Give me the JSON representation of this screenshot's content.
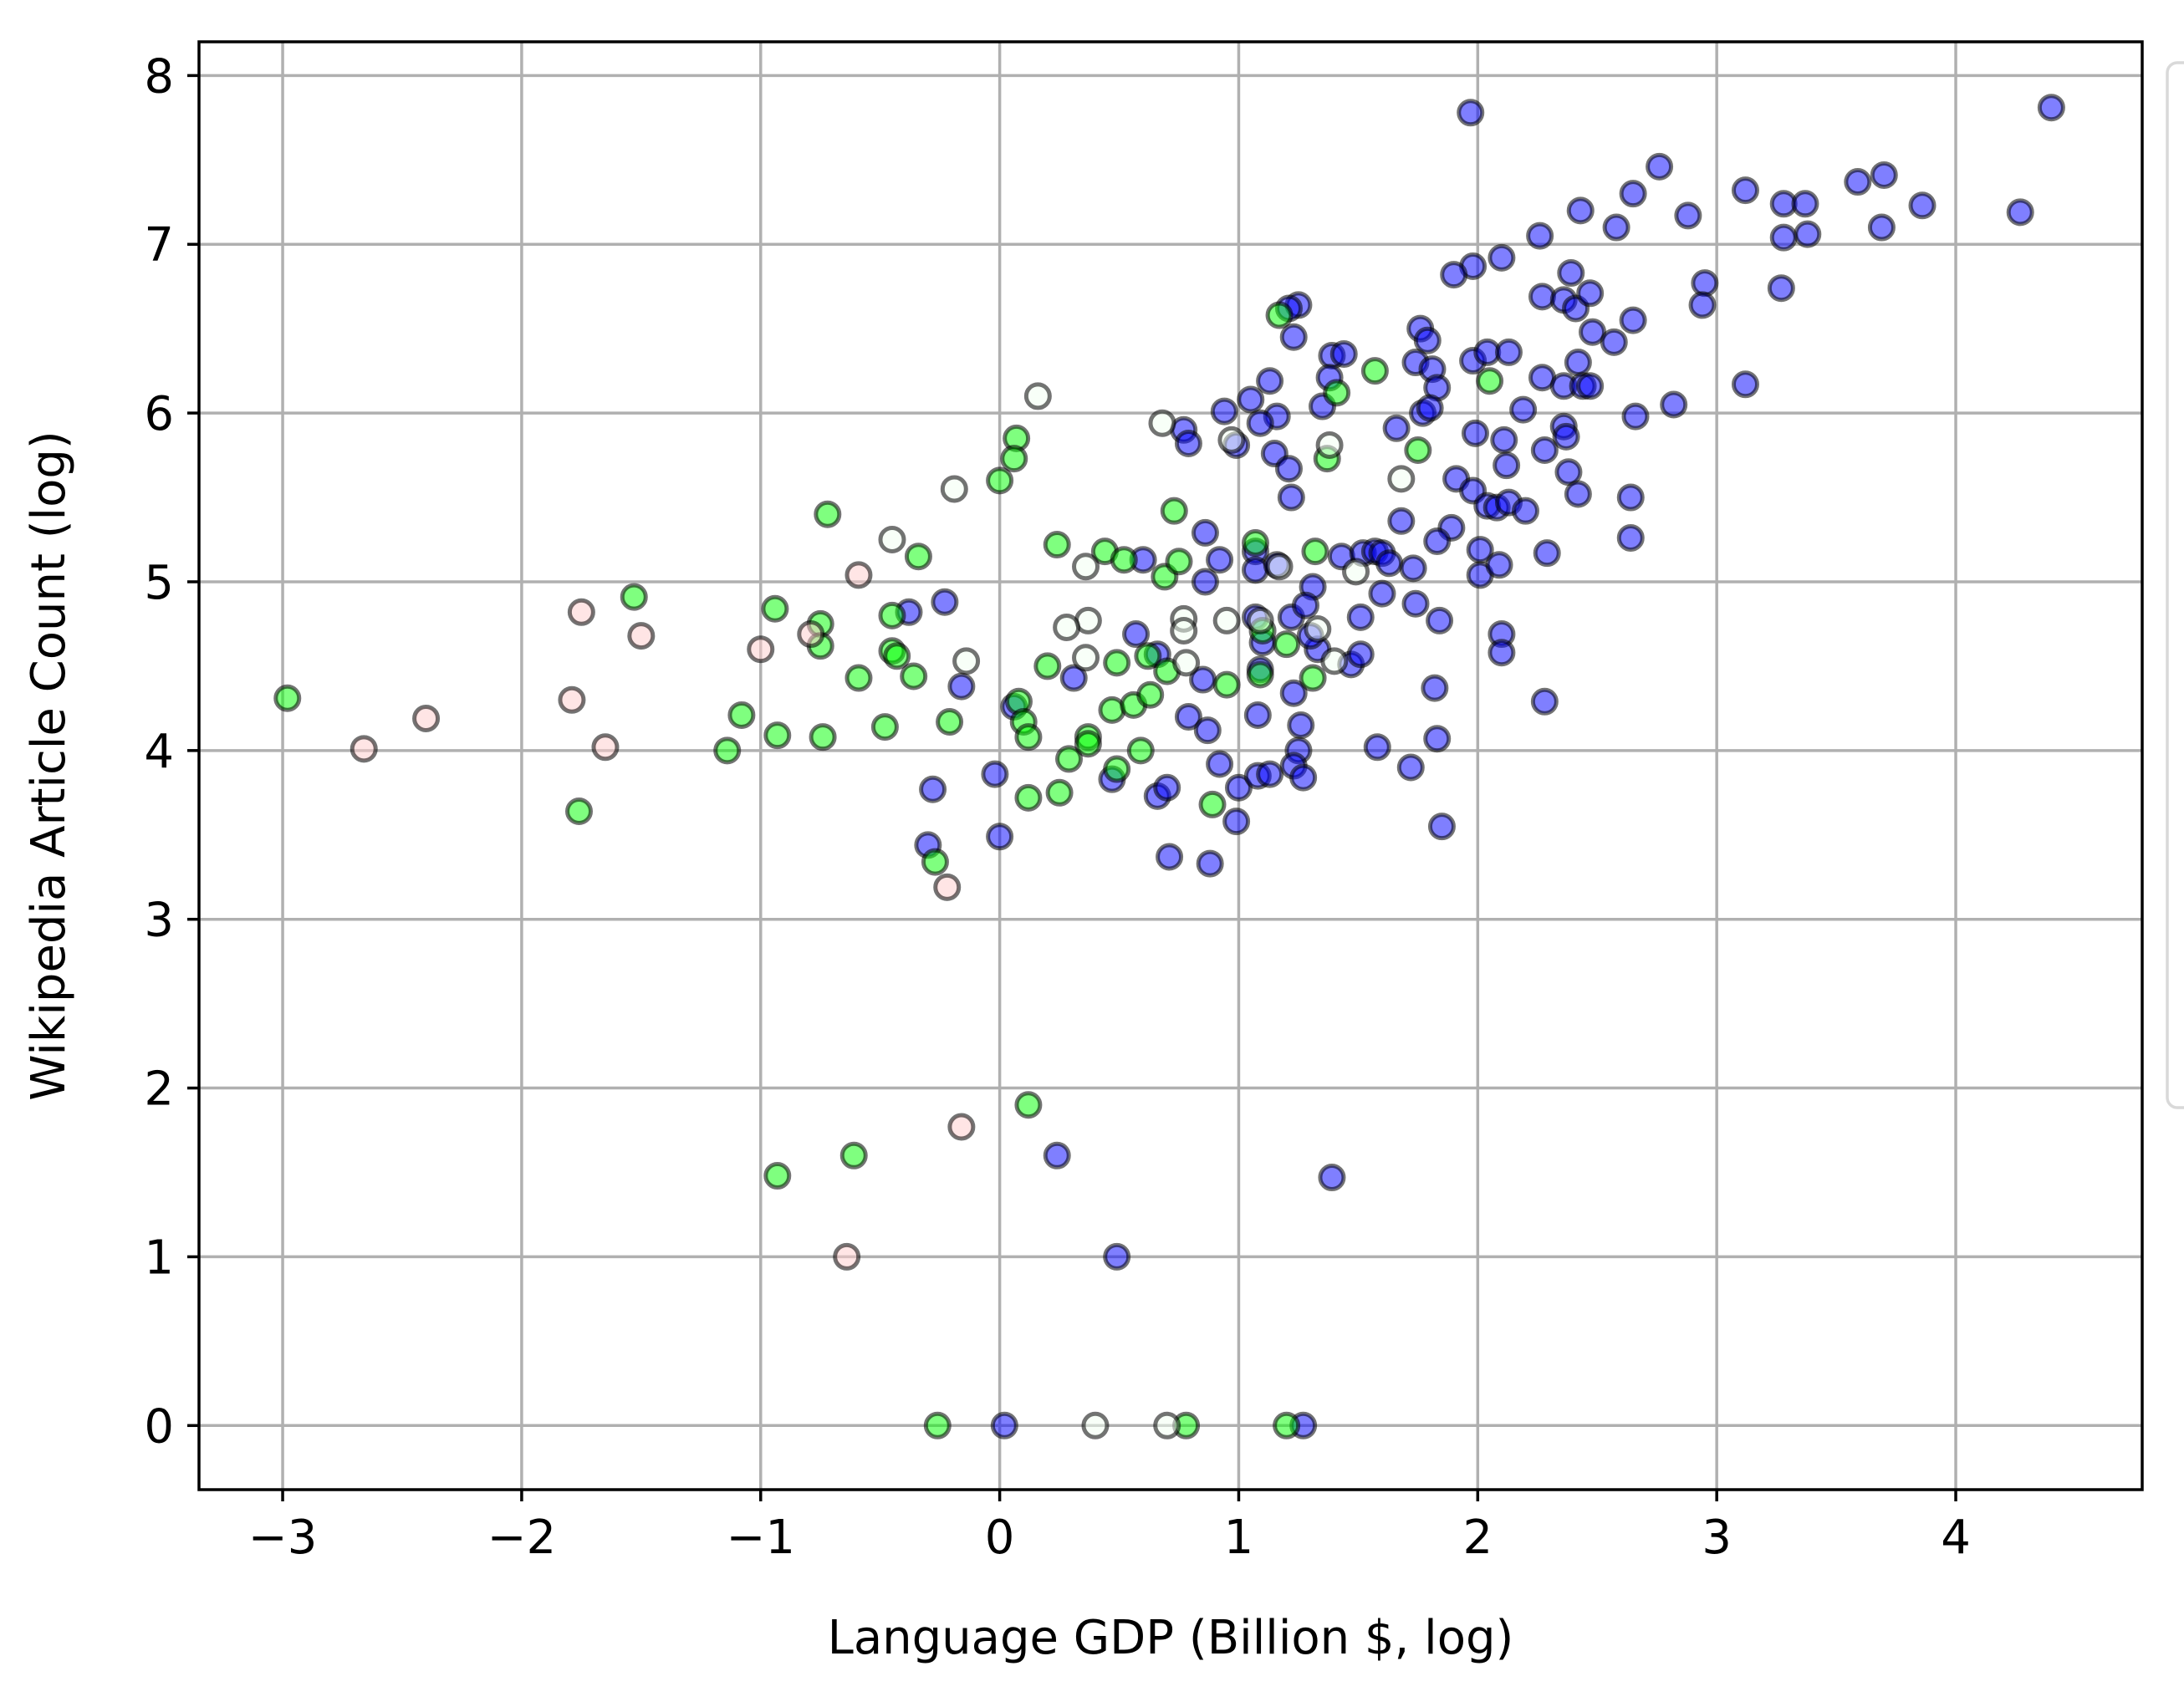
{
  "colors": {
    "series_a": "#0000ff",
    "series_b": "#00ff00",
    "series_c": "#f2fff2",
    "series_d": "#ffcccc",
    "marker_edge": "#000000",
    "grid": "#b0b0b0"
  },
  "chart_data": {
    "type": "scatter",
    "xlabel": "Language GDP (Billion $, log)",
    "ylabel": "Wikipedia Article Count (log)",
    "xlim": [
      -3.35,
      4.78
    ],
    "ylim": [
      -0.38,
      8.2
    ],
    "xticks": [
      -3,
      -2,
      -1,
      0,
      1,
      2,
      3,
      4
    ],
    "xtick_labels": [
      "−3",
      "−2",
      "−1",
      "0",
      "1",
      "2",
      "3",
      "4"
    ],
    "yticks": [
      0,
      1,
      2,
      3,
      4,
      5,
      6,
      7,
      8
    ],
    "ytick_labels": [
      "0",
      "1",
      "2",
      "3",
      "4",
      "5",
      "6",
      "7",
      "8"
    ],
    "grid": true,
    "legend": "right (entries cut off)",
    "series": [
      {
        "color": "#0000ff",
        "points": [
          [
            1.97,
            7.78
          ],
          [
            4.4,
            7.81
          ],
          [
            2.76,
            7.46
          ],
          [
            2.65,
            7.3
          ],
          [
            2.88,
            7.17
          ],
          [
            2.43,
            7.2
          ],
          [
            2.58,
            7.1
          ],
          [
            2.26,
            7.05
          ],
          [
            3.12,
            7.32
          ],
          [
            3.28,
            7.24
          ],
          [
            3.37,
            7.24
          ],
          [
            3.59,
            7.37
          ],
          [
            3.7,
            7.41
          ],
          [
            3.86,
            7.23
          ],
          [
            4.27,
            7.19
          ],
          [
            3.69,
            7.1
          ],
          [
            3.38,
            7.06
          ],
          [
            3.28,
            7.04
          ],
          [
            1.98,
            6.87
          ],
          [
            1.9,
            6.82
          ],
          [
            2.1,
            6.92
          ],
          [
            2.39,
            6.83
          ],
          [
            2.27,
            6.69
          ],
          [
            2.36,
            6.67
          ],
          [
            2.41,
            6.62
          ],
          [
            2.47,
            6.71
          ],
          [
            2.95,
            6.77
          ],
          [
            2.94,
            6.64
          ],
          [
            3.27,
            6.74
          ],
          [
            2.65,
            6.55
          ],
          [
            2.48,
            6.48
          ],
          [
            2.57,
            6.42
          ],
          [
            2.42,
            6.3
          ],
          [
            2.27,
            6.21
          ],
          [
            2.36,
            6.16
          ],
          [
            2.44,
            6.16
          ],
          [
            2.47,
            6.16
          ],
          [
            1.25,
            6.64
          ],
          [
            1.21,
            6.62
          ],
          [
            1.23,
            6.45
          ],
          [
            1.39,
            6.34
          ],
          [
            1.44,
            6.35
          ],
          [
            1.76,
            6.5
          ],
          [
            1.79,
            6.43
          ],
          [
            1.74,
            6.3
          ],
          [
            1.81,
            6.26
          ],
          [
            1.83,
            6.15
          ],
          [
            1.98,
            6.31
          ],
          [
            2.04,
            6.36
          ],
          [
            2.13,
            6.36
          ],
          [
            1.13,
            6.19
          ],
          [
            1.38,
            6.21
          ],
          [
            1.35,
            6.04
          ],
          [
            1.16,
            5.98
          ],
          [
            1.09,
            5.94
          ],
          [
            1.05,
            6.08
          ],
          [
            0.94,
            6.01
          ],
          [
            0.99,
            5.81
          ],
          [
            0.77,
            5.9
          ],
          [
            0.79,
            5.82
          ],
          [
            1.15,
            5.76
          ],
          [
            1.21,
            5.67
          ],
          [
            1.22,
            5.5
          ],
          [
            1.66,
            5.91
          ],
          [
            1.77,
            6.0
          ],
          [
            1.8,
            6.03
          ],
          [
            1.99,
            5.88
          ],
          [
            2.11,
            5.84
          ],
          [
            2.12,
            5.69
          ],
          [
            2.19,
            6.02
          ],
          [
            2.28,
            5.78
          ],
          [
            2.36,
            5.92
          ],
          [
            2.37,
            5.86
          ],
          [
            2.38,
            5.65
          ],
          [
            2.42,
            5.52
          ],
          [
            2.66,
            5.98
          ],
          [
            2.82,
            6.05
          ],
          [
            3.12,
            6.17
          ],
          [
            2.64,
            5.5
          ],
          [
            2.64,
            5.26
          ],
          [
            1.91,
            5.61
          ],
          [
            1.98,
            5.54
          ],
          [
            2.04,
            5.45
          ],
          [
            2.08,
            5.44
          ],
          [
            2.13,
            5.47
          ],
          [
            2.2,
            5.42
          ],
          [
            1.89,
            5.32
          ],
          [
            1.83,
            5.24
          ],
          [
            2.01,
            5.19
          ],
          [
            2.01,
            5.04
          ],
          [
            2.09,
            5.1
          ],
          [
            2.29,
            5.17
          ],
          [
            0.6,
            5.13
          ],
          [
            0.86,
            5.29
          ],
          [
            0.92,
            5.13
          ],
          [
            0.86,
            5.0
          ],
          [
            1.07,
            5.18
          ],
          [
            1.07,
            5.07
          ],
          [
            1.16,
            5.1
          ],
          [
            1.31,
            4.97
          ],
          [
            1.43,
            5.15
          ],
          [
            1.52,
            5.17
          ],
          [
            1.57,
            5.18
          ],
          [
            1.6,
            5.17
          ],
          [
            1.63,
            5.11
          ],
          [
            1.68,
            5.36
          ],
          [
            1.73,
            5.08
          ],
          [
            1.74,
            4.87
          ],
          [
            1.6,
            4.93
          ],
          [
            1.51,
            4.79
          ],
          [
            1.84,
            4.77
          ],
          [
            1.07,
            4.79
          ],
          [
            1.1,
            4.64
          ],
          [
            1.22,
            4.79
          ],
          [
            1.28,
            4.86
          ],
          [
            1.33,
            4.6
          ],
          [
            1.3,
            4.68
          ],
          [
            1.47,
            4.51
          ],
          [
            1.51,
            4.57
          ],
          [
            -0.38,
            4.82
          ],
          [
            -0.23,
            4.88
          ],
          [
            -0.16,
            4.38
          ],
          [
            0.06,
            4.26
          ],
          [
            0.31,
            4.43
          ],
          [
            0.57,
            4.69
          ],
          [
            0.66,
            4.57
          ],
          [
            0.79,
            4.2
          ],
          [
            0.87,
            4.12
          ],
          [
            0.85,
            4.42
          ],
          [
            1.08,
            4.21
          ],
          [
            1.09,
            4.48
          ],
          [
            1.23,
            4.34
          ],
          [
            1.26,
            4.15
          ],
          [
            1.25,
            4.0
          ],
          [
            0.47,
            3.83
          ],
          [
            0.66,
            3.73
          ],
          [
            0.7,
            3.78
          ],
          [
            0.92,
            3.92
          ],
          [
            1.0,
            3.78
          ],
          [
            1.08,
            3.85
          ],
          [
            1.13,
            3.86
          ],
          [
            1.23,
            3.91
          ],
          [
            1.27,
            3.84
          ],
          [
            1.58,
            4.02
          ],
          [
            1.72,
            3.9
          ],
          [
            1.83,
            4.07
          ],
          [
            1.82,
            4.37
          ],
          [
            2.1,
            4.69
          ],
          [
            2.1,
            4.58
          ],
          [
            2.28,
            4.29
          ],
          [
            -0.28,
            3.77
          ],
          [
            -0.3,
            3.44
          ],
          [
            -0.02,
            3.86
          ],
          [
            0.0,
            3.49
          ],
          [
            0.71,
            3.37
          ],
          [
            0.88,
            3.33
          ],
          [
            0.99,
            3.58
          ],
          [
            1.85,
            3.55
          ],
          [
            0.24,
            1.6
          ],
          [
            1.39,
            1.47
          ],
          [
            0.49,
            1.0
          ],
          [
            0.02,
            0.0
          ],
          [
            1.27,
            0.0
          ]
        ]
      },
      {
        "color": "#00ff00",
        "points": [
          [
            -2.98,
            4.31
          ],
          [
            -1.76,
            3.64
          ],
          [
            -1.53,
            4.91
          ],
          [
            -1.14,
            4.0
          ],
          [
            -1.08,
            4.21
          ],
          [
            -0.94,
            4.84
          ],
          [
            -0.93,
            4.09
          ],
          [
            -0.75,
            4.75
          ],
          [
            -0.75,
            4.62
          ],
          [
            -0.74,
            4.08
          ],
          [
            -0.72,
            5.4
          ],
          [
            -0.59,
            4.43
          ],
          [
            -0.48,
            4.14
          ],
          [
            -0.45,
            4.8
          ],
          [
            -0.45,
            4.59
          ],
          [
            -0.43,
            4.56
          ],
          [
            -0.36,
            4.44
          ],
          [
            -0.34,
            5.15
          ],
          [
            -0.27,
            3.34
          ],
          [
            -0.21,
            4.17
          ],
          [
            0.0,
            5.6
          ],
          [
            0.07,
            5.85
          ],
          [
            0.06,
            5.73
          ],
          [
            0.08,
            4.29
          ],
          [
            0.1,
            4.17
          ],
          [
            0.12,
            4.08
          ],
          [
            0.12,
            3.72
          ],
          [
            0.2,
            4.5
          ],
          [
            0.24,
            5.22
          ],
          [
            0.25,
            3.75
          ],
          [
            0.29,
            3.95
          ],
          [
            0.37,
            4.08
          ],
          [
            0.37,
            4.04
          ],
          [
            0.44,
            5.18
          ],
          [
            0.47,
            4.24
          ],
          [
            0.49,
            4.52
          ],
          [
            0.49,
            3.89
          ],
          [
            0.52,
            5.13
          ],
          [
            0.56,
            4.27
          ],
          [
            0.62,
            4.56
          ],
          [
            0.63,
            4.33
          ],
          [
            0.59,
            4.0
          ],
          [
            0.69,
            5.03
          ],
          [
            0.7,
            4.47
          ],
          [
            0.73,
            5.42
          ],
          [
            0.75,
            5.12
          ],
          [
            0.95,
            4.39
          ],
          [
            0.89,
            3.68
          ],
          [
            1.07,
            5.23
          ],
          [
            1.1,
            4.71
          ],
          [
            1.09,
            4.45
          ],
          [
            1.2,
            4.63
          ],
          [
            1.17,
            6.58
          ],
          [
            1.37,
            5.73
          ],
          [
            1.41,
            6.12
          ],
          [
            1.57,
            6.25
          ],
          [
            1.32,
            5.18
          ],
          [
            1.31,
            4.43
          ],
          [
            1.75,
            5.78
          ],
          [
            2.05,
            6.19
          ],
          [
            -0.93,
            1.48
          ],
          [
            -0.61,
            1.6
          ],
          [
            0.12,
            1.9
          ],
          [
            -0.26,
            0.0
          ],
          [
            0.78,
            0.0
          ],
          [
            1.2,
            0.0
          ]
        ]
      },
      {
        "color": "#f2fff2",
        "points": [
          [
            -0.19,
            5.55
          ],
          [
            0.16,
            6.1
          ],
          [
            0.68,
            5.94
          ],
          [
            0.97,
            5.84
          ],
          [
            1.38,
            5.81
          ],
          [
            1.68,
            5.61
          ],
          [
            -0.45,
            5.25
          ],
          [
            0.36,
            5.09
          ],
          [
            1.49,
            5.06
          ],
          [
            1.17,
            5.09
          ],
          [
            0.77,
            4.78
          ],
          [
            0.77,
            4.71
          ],
          [
            0.95,
            4.77
          ],
          [
            0.37,
            4.77
          ],
          [
            0.28,
            4.73
          ],
          [
            0.36,
            4.55
          ],
          [
            -0.14,
            4.53
          ],
          [
            0.78,
            4.52
          ],
          [
            1.09,
            4.77
          ],
          [
            1.33,
            4.72
          ],
          [
            1.4,
            4.53
          ],
          [
            0.7,
            0.0
          ],
          [
            0.4,
            0.0
          ]
        ]
      },
      {
        "color": "#ffcccc",
        "points": [
          [
            -2.66,
            4.01
          ],
          [
            -2.4,
            4.19
          ],
          [
            -1.79,
            4.3
          ],
          [
            -1.75,
            4.82
          ],
          [
            -1.65,
            4.02
          ],
          [
            -1.5,
            4.68
          ],
          [
            -1.0,
            4.6
          ],
          [
            -0.79,
            4.69
          ],
          [
            -0.59,
            5.04
          ],
          [
            -0.22,
            3.19
          ],
          [
            -0.16,
            1.77
          ],
          [
            -0.64,
            1.0
          ]
        ]
      }
    ]
  }
}
